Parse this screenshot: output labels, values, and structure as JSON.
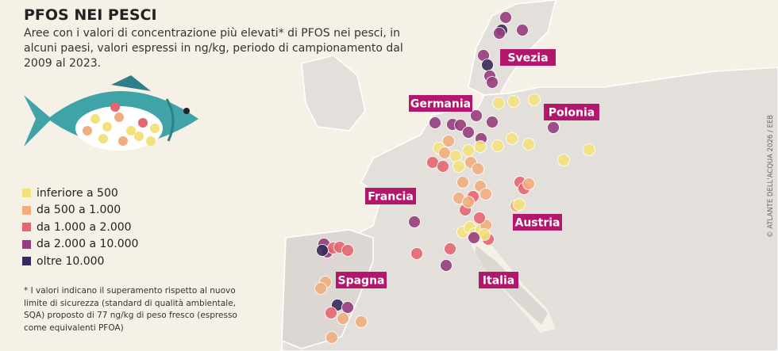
{
  "header": {
    "title": "PFOS NEI PESCI",
    "subtitle": "Aree con i valori di concentrazione più elevati* di PFOS nei pesci, in alcuni paesi, valori espressi in ng/kg, periodo di campionamento dal 2009 al 2023."
  },
  "legend": [
    {
      "label": "inferiore a 500",
      "color": "#f3e17c"
    },
    {
      "label": "da 500 a 1.000",
      "color": "#f1ad7d"
    },
    {
      "label": "da 1.000 a 2.000",
      "color": "#e5666f"
    },
    {
      "label": "da 2.000 a 10.000",
      "color": "#963e7d"
    },
    {
      "label": "oltre 10.000",
      "color": "#382a5a"
    }
  ],
  "countries": [
    "Svezia",
    "Germania",
    "Polonia",
    "Francia",
    "Austria",
    "Spagna",
    "Italia"
  ],
  "footnote": "* I valori indicano il superamento rispetto al nuovo limite di sicurezza (standard di qualità ambientale, SQA) proposto di 77 ng/kg di peso fresco (espresso come equivalenti PFOA)",
  "credit": "© ATLANTE DELL'ACQUA 2026 / EEB"
}
